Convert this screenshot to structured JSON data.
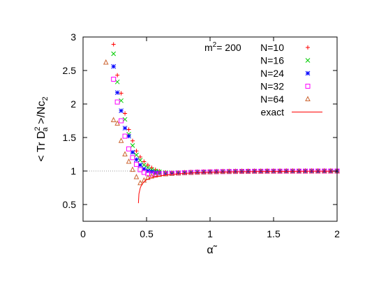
{
  "chart_data": {
    "type": "scatter",
    "xlabel": "α̃",
    "ylabel_prefix": "< Tr D",
    "ylabel_sup": "2",
    "ylabel_sub": "a",
    "ylabel_suffix": " >/Nc",
    "ylabel_suffix_sub": "2",
    "annotation": {
      "prefix": "m",
      "sup": "2",
      "suffix": "= 200"
    },
    "xlim": [
      0,
      2
    ],
    "ylim": [
      0.25,
      3
    ],
    "xticks": [
      0,
      0.5,
      1,
      1.5,
      2
    ],
    "xtick_labels": [
      "0",
      "0.5",
      "1",
      "1.5",
      "2"
    ],
    "yticks": [
      0.5,
      1,
      1.5,
      2,
      2.5,
      3
    ],
    "ytick_labels": [
      "0.5",
      "1",
      "1.5",
      "2",
      "2.5",
      "3"
    ],
    "reference_line": {
      "y": 1,
      "color": "#999999",
      "style": "dotted"
    },
    "grid": false,
    "legend_position": "top-right",
    "series": [
      {
        "name": "N=10",
        "marker": "plus",
        "color": "#ff0000",
        "points": [
          [
            0.24,
            2.89
          ],
          [
            0.27,
            2.43
          ],
          [
            0.3,
            2.16
          ],
          [
            0.33,
            1.86
          ],
          [
            0.36,
            1.62
          ],
          [
            0.39,
            1.45
          ],
          [
            0.42,
            1.3
          ],
          [
            0.45,
            1.21
          ],
          [
            0.48,
            1.14
          ],
          [
            0.51,
            1.09
          ],
          [
            0.54,
            1.05
          ],
          [
            0.57,
            1.02
          ],
          [
            0.6,
            1.0
          ],
          [
            0.65,
            0.98
          ],
          [
            0.7,
            0.975
          ],
          [
            0.75,
            0.975
          ],
          [
            0.8,
            0.978
          ],
          [
            0.85,
            0.982
          ],
          [
            0.9,
            0.985
          ],
          [
            0.95,
            0.988
          ],
          [
            1.0,
            0.99
          ],
          [
            1.05,
            0.992
          ],
          [
            1.1,
            0.993
          ],
          [
            1.15,
            0.994
          ],
          [
            1.2,
            0.995
          ],
          [
            1.25,
            0.996
          ],
          [
            1.3,
            0.996
          ],
          [
            1.35,
            0.997
          ],
          [
            1.4,
            0.997
          ],
          [
            1.45,
            0.998
          ],
          [
            1.5,
            0.998
          ],
          [
            1.55,
            0.998
          ],
          [
            1.6,
            0.998
          ],
          [
            1.65,
            0.999
          ],
          [
            1.7,
            0.999
          ],
          [
            1.75,
            0.999
          ],
          [
            1.8,
            0.999
          ],
          [
            1.85,
            0.999
          ],
          [
            1.9,
            0.999
          ],
          [
            1.95,
            0.999
          ],
          [
            2.0,
            0.999
          ]
        ]
      },
      {
        "name": "N=16",
        "marker": "cross",
        "color": "#00cc00",
        "points": [
          [
            0.24,
            2.75
          ],
          [
            0.27,
            2.33
          ],
          [
            0.3,
            2.05
          ],
          [
            0.33,
            1.77
          ],
          [
            0.36,
            1.55
          ],
          [
            0.39,
            1.38
          ],
          [
            0.42,
            1.24
          ],
          [
            0.45,
            1.16
          ],
          [
            0.48,
            1.09
          ],
          [
            0.51,
            1.05
          ],
          [
            0.54,
            1.02
          ],
          [
            0.57,
            1.0
          ],
          [
            0.6,
            0.99
          ],
          [
            0.65,
            0.975
          ],
          [
            0.7,
            0.972
          ],
          [
            0.75,
            0.974
          ],
          [
            0.8,
            0.977
          ],
          [
            0.85,
            0.981
          ],
          [
            0.9,
            0.984
          ],
          [
            0.95,
            0.987
          ],
          [
            1.0,
            0.989
          ],
          [
            1.05,
            0.991
          ],
          [
            1.1,
            0.993
          ],
          [
            1.15,
            0.994
          ],
          [
            1.2,
            0.995
          ],
          [
            1.25,
            0.995
          ],
          [
            1.3,
            0.996
          ],
          [
            1.35,
            0.997
          ],
          [
            1.4,
            0.997
          ],
          [
            1.45,
            0.997
          ],
          [
            1.5,
            0.998
          ],
          [
            1.55,
            0.998
          ],
          [
            1.6,
            0.998
          ],
          [
            1.65,
            0.998
          ],
          [
            1.7,
            0.999
          ],
          [
            1.75,
            0.999
          ],
          [
            1.8,
            0.999
          ],
          [
            1.85,
            0.999
          ],
          [
            1.9,
            0.999
          ],
          [
            1.95,
            0.999
          ],
          [
            2.0,
            0.999
          ]
        ]
      },
      {
        "name": "N=24",
        "marker": "star",
        "color": "#0000ff",
        "points": [
          [
            0.24,
            2.56
          ],
          [
            0.27,
            2.17
          ],
          [
            0.3,
            1.9
          ],
          [
            0.33,
            1.64
          ],
          [
            0.36,
            1.52
          ],
          [
            0.39,
            1.28
          ],
          [
            0.42,
            1.17
          ],
          [
            0.45,
            1.09
          ],
          [
            0.48,
            1.03
          ],
          [
            0.51,
            1.0
          ],
          [
            0.54,
            0.99
          ],
          [
            0.57,
            0.975
          ],
          [
            0.6,
            0.97
          ],
          [
            0.65,
            0.966
          ],
          [
            0.7,
            0.968
          ],
          [
            0.75,
            0.972
          ],
          [
            0.8,
            0.976
          ],
          [
            0.85,
            0.98
          ],
          [
            0.9,
            0.983
          ],
          [
            0.95,
            0.986
          ],
          [
            1.0,
            0.988
          ],
          [
            1.05,
            0.99
          ],
          [
            1.1,
            0.992
          ],
          [
            1.15,
            0.993
          ],
          [
            1.2,
            0.994
          ],
          [
            1.25,
            0.995
          ],
          [
            1.3,
            0.996
          ],
          [
            1.35,
            0.996
          ],
          [
            1.4,
            0.997
          ],
          [
            1.45,
            0.997
          ],
          [
            1.5,
            0.997
          ],
          [
            1.55,
            0.998
          ],
          [
            1.6,
            0.998
          ],
          [
            1.65,
            0.998
          ],
          [
            1.7,
            0.998
          ],
          [
            1.75,
            0.999
          ],
          [
            1.8,
            0.999
          ],
          [
            1.85,
            0.999
          ],
          [
            1.9,
            0.999
          ],
          [
            1.95,
            0.999
          ],
          [
            2.0,
            0.999
          ]
        ]
      },
      {
        "name": "N=32",
        "marker": "square",
        "color": "#ff00ff",
        "points": [
          [
            0.24,
            2.37
          ],
          [
            0.27,
            2.03
          ],
          [
            0.3,
            1.75
          ],
          [
            0.33,
            1.52
          ],
          [
            0.36,
            1.33
          ],
          [
            0.39,
            1.2
          ],
          [
            0.42,
            1.1
          ],
          [
            0.45,
            1.02
          ],
          [
            0.48,
            0.98
          ],
          [
            0.51,
            0.96
          ],
          [
            0.54,
            0.955
          ],
          [
            0.57,
            0.955
          ],
          [
            0.6,
            0.957
          ],
          [
            0.65,
            0.96
          ],
          [
            0.7,
            0.965
          ],
          [
            0.75,
            0.97
          ],
          [
            0.8,
            0.974
          ],
          [
            0.85,
            0.978
          ],
          [
            0.9,
            0.982
          ],
          [
            0.95,
            0.985
          ],
          [
            1.0,
            0.987
          ],
          [
            1.05,
            0.989
          ],
          [
            1.1,
            0.991
          ],
          [
            1.15,
            0.992
          ],
          [
            1.2,
            0.993
          ],
          [
            1.25,
            0.994
          ],
          [
            1.3,
            0.995
          ],
          [
            1.35,
            0.996
          ],
          [
            1.4,
            0.996
          ],
          [
            1.45,
            0.997
          ],
          [
            1.5,
            0.997
          ],
          [
            1.55,
            0.997
          ],
          [
            1.6,
            0.998
          ],
          [
            1.65,
            0.998
          ],
          [
            1.7,
            0.998
          ],
          [
            1.75,
            0.998
          ],
          [
            1.8,
            0.999
          ],
          [
            1.85,
            0.999
          ],
          [
            1.9,
            0.999
          ],
          [
            1.95,
            0.999
          ],
          [
            2.0,
            0.999
          ]
        ]
      },
      {
        "name": "N=64",
        "marker": "triangle",
        "color": "#cc6633",
        "points": [
          [
            0.18,
            2.62
          ],
          [
            0.24,
            1.76
          ],
          [
            0.27,
            1.71
          ],
          [
            0.3,
            1.45
          ],
          [
            0.33,
            1.25
          ],
          [
            0.36,
            1.14
          ],
          [
            0.39,
            1.02
          ],
          [
            0.42,
            0.91
          ],
          [
            0.45,
            0.82
          ],
          [
            0.48,
            0.86
          ],
          [
            0.51,
            0.9
          ],
          [
            0.54,
            0.92
          ],
          [
            0.57,
            0.935
          ],
          [
            0.6,
            0.945
          ],
          [
            0.65,
            0.953
          ],
          [
            0.7,
            0.96
          ],
          [
            0.75,
            0.966
          ],
          [
            0.8,
            0.971
          ],
          [
            0.85,
            0.975
          ],
          [
            0.9,
            0.979
          ],
          [
            0.95,
            0.982
          ],
          [
            1.0,
            0.985
          ],
          [
            1.05,
            0.987
          ],
          [
            1.1,
            0.989
          ],
          [
            1.15,
            0.991
          ],
          [
            1.2,
            0.992
          ],
          [
            1.25,
            0.993
          ],
          [
            1.3,
            0.994
          ],
          [
            1.35,
            0.995
          ],
          [
            1.4,
            0.995
          ],
          [
            1.45,
            0.996
          ],
          [
            1.5,
            0.996
          ],
          [
            1.55,
            0.997
          ],
          [
            1.6,
            0.997
          ],
          [
            1.65,
            0.997
          ],
          [
            1.7,
            0.998
          ],
          [
            1.75,
            0.998
          ],
          [
            1.8,
            0.998
          ],
          [
            1.85,
            0.998
          ],
          [
            1.9,
            0.999
          ],
          [
            1.95,
            0.999
          ],
          [
            2.0,
            0.999
          ]
        ]
      },
      {
        "name": "exact",
        "marker": "line",
        "color": "#ff0000",
        "points": [
          [
            0.436,
            0.52
          ],
          [
            0.44,
            0.66
          ],
          [
            0.45,
            0.745
          ],
          [
            0.46,
            0.79
          ],
          [
            0.48,
            0.84
          ],
          [
            0.5,
            0.87
          ],
          [
            0.53,
            0.895
          ],
          [
            0.56,
            0.91
          ],
          [
            0.6,
            0.925
          ],
          [
            0.65,
            0.94
          ],
          [
            0.7,
            0.95
          ],
          [
            0.75,
            0.958
          ],
          [
            0.8,
            0.965
          ],
          [
            0.85,
            0.97
          ],
          [
            0.9,
            0.975
          ],
          [
            0.95,
            0.978
          ],
          [
            1.0,
            0.981
          ],
          [
            1.1,
            0.985
          ],
          [
            1.2,
            0.988
          ],
          [
            1.3,
            0.991
          ],
          [
            1.4,
            0.993
          ],
          [
            1.5,
            0.994
          ],
          [
            1.6,
            0.995
          ],
          [
            1.7,
            0.996
          ],
          [
            1.8,
            0.997
          ],
          [
            1.9,
            0.997
          ],
          [
            2.0,
            0.998
          ]
        ]
      }
    ]
  }
}
